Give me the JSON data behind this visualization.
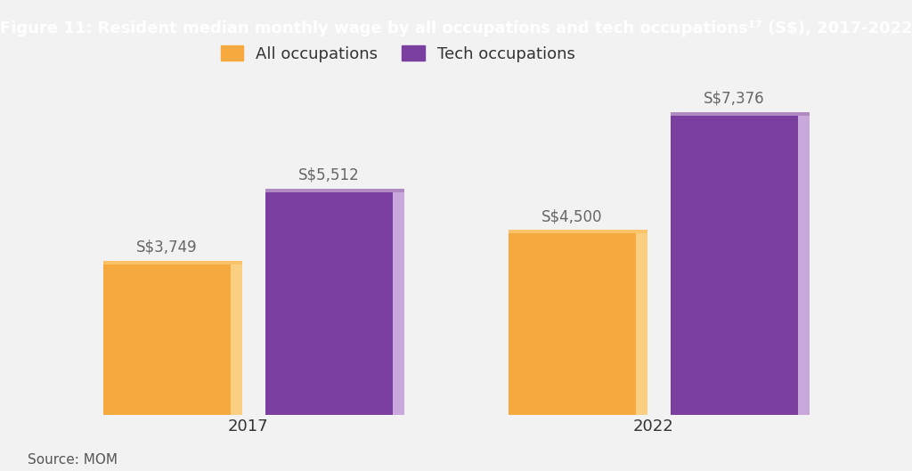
{
  "title": "Figure 11: Resident median monthly wage by all occupations and tech occupations¹⁷ (S$), 2017-2022",
  "years": [
    "2017",
    "2022"
  ],
  "all_occupations": [
    3749,
    4500
  ],
  "tech_occupations": [
    5512,
    7376
  ],
  "all_color": "#F5A93E",
  "all_color_light": "#FBCF82",
  "all_color_top": "#FCC46A",
  "tech_color": "#7B3FA0",
  "tech_color_light": "#C9A8DC",
  "tech_color_top": "#B08AC0",
  "background_color": "#F2F2F2",
  "header_color": "#8B4BAB",
  "header_text_color": "#FFFFFF",
  "label_all": [
    "S$3,749",
    "S$4,500"
  ],
  "label_tech": [
    "S$5,512",
    "S$7,376"
  ],
  "source_text": "Source: MOM",
  "legend_all": "All occupations",
  "legend_tech": "Tech occupations",
  "ylim": [
    0,
    8500
  ],
  "title_fontsize": 13.0,
  "axis_fontsize": 13,
  "label_fontsize": 12,
  "source_fontsize": 11
}
